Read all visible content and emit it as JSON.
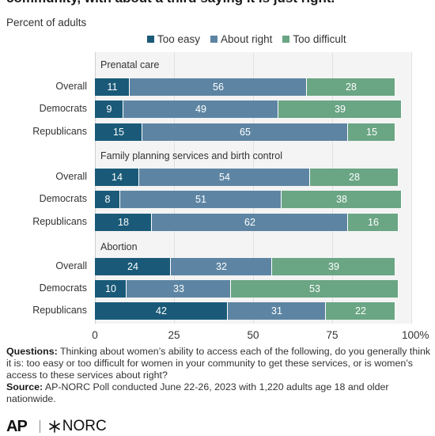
{
  "header": {
    "title": "community, with about a third saying it is just right.",
    "subtitle": "Percent of adults"
  },
  "legend": [
    {
      "label": "Too easy",
      "color": "#1a5a78"
    },
    {
      "label": "About right",
      "color": "#5d85a3"
    },
    {
      "label": "Too difficult",
      "color": "#6aa584"
    }
  ],
  "chart_data": {
    "type": "bar",
    "orientation": "horizontal",
    "stacked": true,
    "xlim": [
      0,
      100
    ],
    "ticks": [
      "0",
      "25",
      "50",
      "75",
      "100%"
    ],
    "grid": true,
    "legend_position": "top",
    "series_names": [
      "Too easy",
      "About right",
      "Too difficult"
    ],
    "groups": [
      {
        "title": "Prenatal care",
        "rows": [
          {
            "label": "Overall",
            "values": [
              11,
              56,
              28
            ]
          },
          {
            "label": "Democrats",
            "values": [
              9,
              49,
              39
            ]
          },
          {
            "label": "Republicans",
            "values": [
              15,
              65,
              15
            ]
          }
        ]
      },
      {
        "title": "Family planning services and birth control",
        "rows": [
          {
            "label": "Overall",
            "values": [
              14,
              54,
              28
            ]
          },
          {
            "label": "Democrats",
            "values": [
              8,
              51,
              38
            ]
          },
          {
            "label": "Republicans",
            "values": [
              18,
              62,
              16
            ]
          }
        ]
      },
      {
        "title": "Abortion",
        "rows": [
          {
            "label": "Overall",
            "values": [
              24,
              32,
              39
            ]
          },
          {
            "label": "Democrats",
            "values": [
              10,
              33,
              53
            ]
          },
          {
            "label": "Republicans",
            "values": [
              42,
              31,
              22
            ]
          }
        ]
      }
    ]
  },
  "notes": {
    "questions_label": "Questions:",
    "questions_text": "Thinking about women’s ability to access each of the following, do you generally think it is: too easy or too difficult for women in your community to get these services, or is women’s access to these services about right?",
    "source_label": "Source:",
    "source_text": "AP-NORC Poll conducted June 22-26, 2023 with 1,220 adults age 18 and older nationwide."
  },
  "footer": {
    "ap_logo_text": "AP",
    "norc_logo_text": "NORC"
  }
}
